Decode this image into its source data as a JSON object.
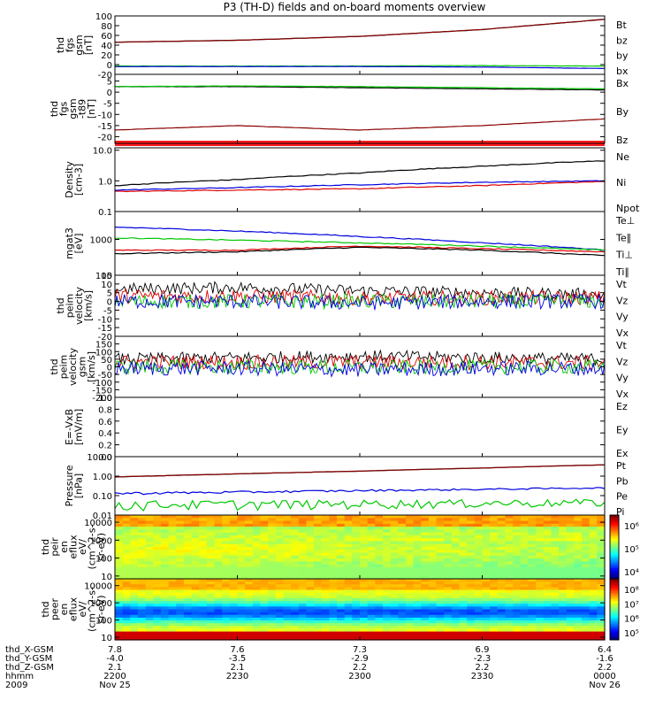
{
  "title": "P3 (TH-D) fields and on-board moments overview",
  "colors": {
    "black": "#000000",
    "red": "#e00000",
    "dark_red": "#8b0000",
    "green": "#00c800",
    "blue": "#0000e0",
    "red_band": "#ff1a1a"
  },
  "chart_data": [
    {
      "id": "fgs_gsm",
      "type": "line",
      "ylabel": [
        "thd",
        "fgs",
        "gsm",
        "[nT]"
      ],
      "ylim": [
        -20,
        100
      ],
      "yticks": [
        "100",
        "80",
        "60",
        "40",
        "20",
        "0",
        "-20"
      ],
      "x": [
        0,
        0.25,
        0.5,
        0.75,
        1.0
      ],
      "series": [
        {
          "name": "Bt",
          "color": "#000000",
          "values": [
            46,
            50,
            58,
            72,
            93
          ]
        },
        {
          "name": "bz",
          "color": "#8b0000",
          "values": [
            46,
            50,
            58,
            72,
            93
          ]
        },
        {
          "name": "by",
          "color": "#00c800",
          "values": [
            -3,
            -3,
            -3,
            -2,
            -3
          ]
        },
        {
          "name": "bx",
          "color": "#0000e0",
          "values": [
            -4,
            -4,
            -4,
            -5,
            -8
          ]
        }
      ]
    },
    {
      "id": "fgs_gse_zoom",
      "type": "line",
      "ylabel": [
        "thd",
        "fgs",
        "gsm",
        "-t89",
        "[nT]"
      ],
      "ylim": [
        -23,
        8
      ],
      "yticks": [
        "5",
        "0",
        "-5",
        "-10",
        "-15",
        "-20"
      ],
      "x": [
        0,
        0.25,
        0.5,
        0.75,
        1.0
      ],
      "series": [
        {
          "name": "Bx",
          "color": "#000000",
          "values": [
            2.5,
            2.5,
            2.0,
            1.5,
            1.0
          ]
        },
        {
          "name": "By",
          "color": "#00c800",
          "values": [
            2.5,
            2.8,
            2.5,
            2.0,
            1.5
          ]
        },
        {
          "name": "Bz",
          "color": "#8b0000",
          "values": [
            -17,
            -15,
            -17,
            -15,
            -12
          ]
        }
      ]
    },
    {
      "id": "density",
      "type": "line",
      "ylabel": [
        "Density",
        "[cm-3]"
      ],
      "log": true,
      "ylim": [
        0.1,
        12
      ],
      "yticks": [
        "10.0",
        "1.0",
        "0.1"
      ],
      "x": [
        0,
        0.25,
        0.5,
        0.75,
        1.0
      ],
      "series": [
        {
          "name": "Ne",
          "color": "#e00000",
          "values": [
            0.45,
            0.5,
            0.55,
            0.7,
            0.95
          ]
        },
        {
          "name": "Ni",
          "color": "#000000",
          "values": [
            0.7,
            1.1,
            1.8,
            3.0,
            4.5
          ]
        },
        {
          "name": "Npot",
          "color": "#0000e0",
          "values": [
            0.5,
            0.6,
            0.75,
            0.9,
            1.0
          ]
        }
      ]
    },
    {
      "id": "temperature",
      "type": "line",
      "ylabel": [
        "mgat3",
        "[eV]"
      ],
      "log": true,
      "ylim": [
        100,
        6000
      ],
      "yticks": [
        "1000",
        "100"
      ],
      "x": [
        0,
        0.25,
        0.5,
        0.75,
        1.0
      ],
      "series": [
        {
          "name": "Te⊥",
          "color": "#e00000",
          "values": [
            500,
            500,
            650,
            550,
            450
          ]
        },
        {
          "name": "Te∥",
          "color": "#000000",
          "values": [
            400,
            450,
            600,
            500,
            350
          ]
        },
        {
          "name": "Ti⊥",
          "color": "#0000e0",
          "values": [
            2200,
            1700,
            1200,
            800,
            500
          ]
        },
        {
          "name": "Ti∥",
          "color": "#00c800",
          "values": [
            1100,
            950,
            800,
            650,
            500
          ]
        }
      ]
    },
    {
      "id": "peim_velocity_1",
      "type": "line",
      "ylabel": [
        "thd",
        "peim",
        "velocity",
        "[km/s]"
      ],
      "ylim": [
        -20,
        15
      ],
      "yticks": [
        "15",
        "10",
        "5",
        "0",
        "-5",
        "-10",
        "-15",
        "-20"
      ],
      "x": [
        0,
        0.25,
        0.5,
        0.75,
        1.0
      ],
      "series": [
        {
          "name": "Vt",
          "color": "#000000",
          "values": [
            7,
            8,
            6,
            5,
            4
          ]
        },
        {
          "name": "Vz",
          "color": "#e00000",
          "values": [
            3,
            3,
            2,
            2,
            2
          ]
        },
        {
          "name": "Vy",
          "color": "#00c800",
          "values": [
            0,
            0,
            0,
            0,
            0
          ]
        },
        {
          "name": "Vx",
          "color": "#0000e0",
          "values": [
            0,
            0,
            -1,
            0,
            0
          ]
        }
      ]
    },
    {
      "id": "peim_velocity_2",
      "type": "line",
      "ylabel": [
        "thd",
        "peim",
        "velocity",
        "gsm",
        "[km/s]"
      ],
      "ylim": [
        -200,
        200
      ],
      "yticks": [
        "150",
        "100",
        "50",
        "0",
        "-50",
        "-100",
        "-150",
        "-200"
      ],
      "x": [
        0,
        0.25,
        0.5,
        0.75,
        1.0
      ],
      "series": [
        {
          "name": "Vt",
          "color": "#000000",
          "values": [
            50,
            60,
            70,
            60,
            50
          ]
        },
        {
          "name": "Vz",
          "color": "#e00000",
          "values": [
            30,
            30,
            30,
            30,
            25
          ]
        },
        {
          "name": "Vy",
          "color": "#00c800",
          "values": [
            0,
            0,
            -5,
            0,
            0
          ]
        },
        {
          "name": "Vx",
          "color": "#0000e0",
          "values": [
            -10,
            -10,
            -20,
            -10,
            -10
          ]
        }
      ]
    },
    {
      "id": "efield",
      "type": "line",
      "ylabel": [
        "E=-VxB",
        "[mV/m]"
      ],
      "ylim": [
        0.0,
        1.0
      ],
      "yticks": [
        "1.0",
        "0.8",
        "0.6",
        "0.4",
        "0.2",
        "0.0"
      ],
      "x": [],
      "series": [
        {
          "name": "Ez",
          "color": "#e00000",
          "values": []
        },
        {
          "name": "Ey",
          "color": "#00c800",
          "values": []
        },
        {
          "name": "Ex",
          "color": "#0000e0",
          "values": []
        }
      ]
    },
    {
      "id": "pressure",
      "type": "line",
      "ylabel": [
        "Pressure",
        "[nPa]"
      ],
      "log": true,
      "ylim": [
        0.01,
        10
      ],
      "yticks": [
        "10.00",
        "1.00",
        "0.10",
        "0.01"
      ],
      "x": [
        0,
        0.25,
        0.5,
        0.75,
        1.0
      ],
      "series": [
        {
          "name": "Pt",
          "color": "#000000",
          "values": [
            0.9,
            1.3,
            1.8,
            2.6,
            3.8
          ]
        },
        {
          "name": "Pb",
          "color": "#8b0000",
          "values": [
            0.9,
            1.3,
            1.8,
            2.6,
            3.8
          ]
        },
        {
          "name": "Pe",
          "color": "#00c800",
          "values": [
            0.035,
            0.037,
            0.039,
            0.042,
            0.045
          ]
        },
        {
          "name": "Pi",
          "color": "#0000e0",
          "values": [
            0.13,
            0.15,
            0.18,
            0.21,
            0.25
          ]
        }
      ]
    },
    {
      "id": "peir_spectrogram",
      "type": "heatmap",
      "ylabel": [
        "thd",
        "peir",
        "en",
        "eflux",
        "eV/",
        "(cm^2-s-",
        "sr-eV)"
      ],
      "log": true,
      "ylim": [
        7,
        25000
      ],
      "yticks": [
        "10000",
        "1000",
        "100",
        "10"
      ],
      "colorbar_ticks": [
        "10⁶",
        "10⁵",
        "10⁴"
      ]
    },
    {
      "id": "peer_spectrogram",
      "type": "heatmap",
      "ylabel": [
        "thd",
        "peer",
        "en",
        "eflux",
        "eV/",
        "(cm^2-s-",
        "sr-eV)"
      ],
      "log": true,
      "ylim": [
        7,
        25000
      ],
      "yticks": [
        "10000",
        "1000",
        "100",
        "10"
      ],
      "colorbar_ticks": [
        "10⁸",
        "10⁷",
        "10⁶",
        "10⁵"
      ]
    }
  ],
  "xaxis": {
    "row_labels": [
      "thd_X-GSM",
      "thd_Y-GSM",
      "thd_Z-GSM",
      "hhmm",
      "2009"
    ],
    "columns": [
      [
        "7.8",
        "-4.0",
        "2.1",
        "2200",
        "Nov 25"
      ],
      [
        "7.6",
        "-3.5",
        "2.1",
        "2230",
        ""
      ],
      [
        "7.3",
        "-2.9",
        "2.2",
        "2300",
        ""
      ],
      [
        "6.9",
        "-2.3",
        "2.2",
        "2330",
        ""
      ],
      [
        "6.4",
        "-1.6",
        "2.2",
        "0000",
        "Nov 26"
      ]
    ]
  }
}
